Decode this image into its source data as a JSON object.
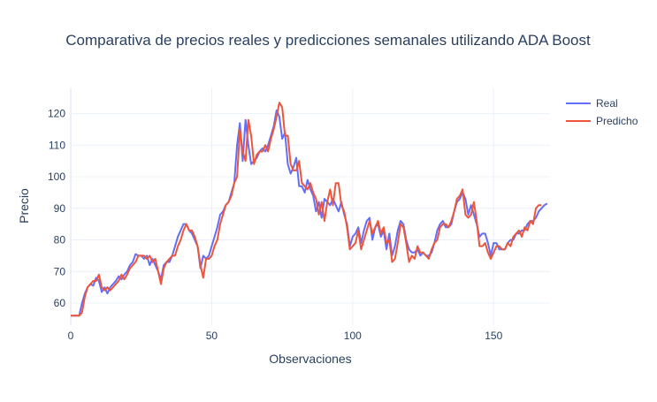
{
  "chart_data": {
    "type": "line",
    "title": "Comparativa de precios reales y predicciones semanales utilizando ADA Boost",
    "xlabel": "Observaciones",
    "ylabel": "Precio",
    "xlim": [
      0,
      170
    ],
    "ylim": [
      53,
      128
    ],
    "x_ticks": [
      0,
      50,
      100,
      150
    ],
    "y_ticks": [
      60,
      70,
      80,
      90,
      100,
      110,
      120
    ],
    "grid": true,
    "legend_position": "top-right",
    "series": [
      {
        "name": "Real",
        "color": "#636efa",
        "points": [
          [
            0,
            56
          ],
          [
            3,
            56
          ],
          [
            4,
            60
          ],
          [
            5,
            63
          ],
          [
            6,
            65
          ],
          [
            7,
            66
          ],
          [
            8,
            65.5
          ],
          [
            9,
            68
          ],
          [
            10,
            67
          ],
          [
            11,
            63.5
          ],
          [
            12,
            65
          ],
          [
            13,
            63
          ],
          [
            14,
            65
          ],
          [
            15,
            66
          ],
          [
            16,
            67
          ],
          [
            17,
            68.5
          ],
          [
            18,
            67.5
          ],
          [
            19,
            69
          ],
          [
            20,
            70
          ],
          [
            21,
            72
          ],
          [
            22,
            73
          ],
          [
            23,
            75.5
          ],
          [
            24,
            75
          ],
          [
            25,
            75
          ],
          [
            26,
            74
          ],
          [
            27,
            75
          ],
          [
            28,
            72
          ],
          [
            29,
            74
          ],
          [
            30,
            72
          ],
          [
            31,
            70
          ],
          [
            32,
            67.5
          ],
          [
            33,
            72
          ],
          [
            34,
            73
          ],
          [
            35,
            73
          ],
          [
            36,
            75
          ],
          [
            37,
            78
          ],
          [
            38,
            81
          ],
          [
            39,
            83
          ],
          [
            40,
            85
          ],
          [
            41,
            85
          ],
          [
            42,
            83
          ],
          [
            43,
            82
          ],
          [
            44,
            80
          ],
          [
            45,
            78
          ],
          [
            46,
            71
          ],
          [
            47,
            75
          ],
          [
            48,
            74
          ],
          [
            49,
            75
          ],
          [
            50,
            78
          ],
          [
            51,
            81
          ],
          [
            52,
            84
          ],
          [
            53,
            88
          ],
          [
            54,
            89
          ],
          [
            55,
            91
          ],
          [
            56,
            92
          ],
          [
            57,
            95
          ],
          [
            58,
            98
          ],
          [
            59,
            110
          ],
          [
            60,
            117
          ],
          [
            61,
            105
          ],
          [
            62,
            118
          ],
          [
            63,
            110
          ],
          [
            64,
            104
          ],
          [
            65,
            105
          ],
          [
            66,
            106
          ],
          [
            67,
            108
          ],
          [
            68,
            109
          ],
          [
            69,
            108
          ],
          [
            70,
            110
          ],
          [
            71,
            113
          ],
          [
            72,
            116
          ],
          [
            73,
            121
          ],
          [
            74,
            119
          ],
          [
            75,
            112
          ],
          [
            76,
            114
          ],
          [
            77,
            104
          ],
          [
            78,
            101
          ],
          [
            79,
            103
          ],
          [
            80,
            106
          ],
          [
            81,
            97
          ],
          [
            82,
            97
          ],
          [
            83,
            95
          ],
          [
            84,
            99
          ],
          [
            85,
            96
          ],
          [
            86,
            94
          ],
          [
            87,
            89
          ],
          [
            88,
            92
          ],
          [
            89,
            87
          ],
          [
            90,
            93
          ],
          [
            91,
            92
          ],
          [
            92,
            91
          ],
          [
            93,
            93
          ],
          [
            94,
            91
          ],
          [
            95,
            89
          ],
          [
            96,
            92
          ],
          [
            97,
            88
          ],
          [
            98,
            85
          ],
          [
            99,
            78
          ],
          [
            100,
            81
          ],
          [
            101,
            82
          ],
          [
            102,
            84
          ],
          [
            103,
            79
          ],
          [
            104,
            83
          ],
          [
            105,
            86
          ],
          [
            106,
            87
          ],
          [
            107,
            80
          ],
          [
            108,
            84
          ],
          [
            109,
            85
          ],
          [
            110,
            81
          ],
          [
            111,
            83
          ],
          [
            112,
            77
          ],
          [
            113,
            82
          ],
          [
            114,
            75
          ],
          [
            115,
            78
          ],
          [
            116,
            83
          ],
          [
            117,
            86
          ],
          [
            118,
            85
          ],
          [
            119,
            80
          ],
          [
            120,
            77
          ],
          [
            121,
            76
          ],
          [
            122,
            76
          ],
          [
            123,
            77
          ],
          [
            124,
            75
          ],
          [
            125,
            76
          ],
          [
            126,
            75
          ],
          [
            127,
            75
          ],
          [
            128,
            76
          ],
          [
            129,
            79
          ],
          [
            130,
            83
          ],
          [
            131,
            85
          ],
          [
            132,
            86
          ],
          [
            133,
            84
          ],
          [
            134,
            84
          ],
          [
            135,
            85
          ],
          [
            136,
            89
          ],
          [
            137,
            92
          ],
          [
            138,
            93
          ],
          [
            139,
            95
          ],
          [
            140,
            93
          ],
          [
            141,
            88
          ],
          [
            142,
            91
          ],
          [
            143,
            88
          ],
          [
            144,
            85
          ],
          [
            145,
            81
          ],
          [
            146,
            82
          ],
          [
            147,
            82
          ],
          [
            148,
            79
          ],
          [
            149,
            75
          ],
          [
            150,
            79
          ],
          [
            151,
            79
          ],
          [
            152,
            77
          ],
          [
            153,
            77
          ],
          [
            154,
            77
          ],
          [
            155,
            79
          ],
          [
            156,
            80
          ],
          [
            157,
            80
          ],
          [
            158,
            82
          ],
          [
            159,
            82
          ],
          [
            160,
            83
          ],
          [
            161,
            83
          ],
          [
            162,
            85
          ],
          [
            163,
            86
          ],
          [
            164,
            86
          ],
          [
            165,
            87
          ],
          [
            166,
            89
          ],
          [
            167,
            90
          ],
          [
            168,
            91
          ],
          [
            169,
            91.5
          ]
        ]
      },
      {
        "name": "Predicho",
        "color": "#ef553b",
        "points": [
          [
            0,
            56
          ],
          [
            3,
            56
          ],
          [
            4,
            57
          ],
          [
            5,
            62
          ],
          [
            6,
            65
          ],
          [
            7,
            66
          ],
          [
            8,
            67
          ],
          [
            9,
            67
          ],
          [
            10,
            69
          ],
          [
            11,
            65
          ],
          [
            12,
            64
          ],
          [
            13,
            65
          ],
          [
            14,
            64
          ],
          [
            15,
            65
          ],
          [
            16,
            66
          ],
          [
            17,
            67
          ],
          [
            18,
            69
          ],
          [
            19,
            67.5
          ],
          [
            20,
            69
          ],
          [
            21,
            71
          ],
          [
            22,
            72
          ],
          [
            23,
            73
          ],
          [
            24,
            75
          ],
          [
            25,
            75
          ],
          [
            26,
            75
          ],
          [
            27,
            74
          ],
          [
            28,
            75
          ],
          [
            29,
            73
          ],
          [
            30,
            74
          ],
          [
            31,
            70
          ],
          [
            32,
            66
          ],
          [
            33,
            71
          ],
          [
            34,
            73
          ],
          [
            35,
            74
          ],
          [
            36,
            75
          ],
          [
            37,
            75
          ],
          [
            38,
            78
          ],
          [
            39,
            80
          ],
          [
            40,
            83
          ],
          [
            41,
            85
          ],
          [
            42,
            83
          ],
          [
            43,
            83
          ],
          [
            44,
            81
          ],
          [
            45,
            78
          ],
          [
            46,
            72
          ],
          [
            47,
            68
          ],
          [
            48,
            74
          ],
          [
            49,
            74
          ],
          [
            50,
            75
          ],
          [
            51,
            78
          ],
          [
            52,
            80
          ],
          [
            53,
            85
          ],
          [
            54,
            88
          ],
          [
            55,
            91
          ],
          [
            56,
            92
          ],
          [
            57,
            94
          ],
          [
            58,
            98
          ],
          [
            59,
            100
          ],
          [
            60,
            115
          ],
          [
            61,
            108
          ],
          [
            62,
            105
          ],
          [
            63,
            118
          ],
          [
            64,
            113
          ],
          [
            65,
            104
          ],
          [
            66,
            107
          ],
          [
            67,
            108
          ],
          [
            68,
            108
          ],
          [
            69,
            110
          ],
          [
            70,
            108
          ],
          [
            71,
            112
          ],
          [
            72,
            115
          ],
          [
            73,
            119
          ],
          [
            74,
            123.5
          ],
          [
            75,
            122
          ],
          [
            76,
            113
          ],
          [
            77,
            113
          ],
          [
            78,
            104
          ],
          [
            79,
            102
          ],
          [
            80,
            102
          ],
          [
            81,
            105
          ],
          [
            82,
            98
          ],
          [
            83,
            97
          ],
          [
            84,
            96
          ],
          [
            85,
            98
          ],
          [
            86,
            95
          ],
          [
            87,
            93
          ],
          [
            88,
            88
          ],
          [
            89,
            92
          ],
          [
            90,
            86
          ],
          [
            91,
            92
          ],
          [
            92,
            96
          ],
          [
            93,
            91
          ],
          [
            94,
            98
          ],
          [
            95,
            98
          ],
          [
            96,
            91
          ],
          [
            97,
            89
          ],
          [
            98,
            84
          ],
          [
            99,
            77
          ],
          [
            100,
            78
          ],
          [
            101,
            79
          ],
          [
            102,
            83
          ],
          [
            103,
            77
          ],
          [
            104,
            80
          ],
          [
            105,
            83
          ],
          [
            106,
            86
          ],
          [
            107,
            82
          ],
          [
            108,
            84
          ],
          [
            109,
            86
          ],
          [
            110,
            82
          ],
          [
            111,
            84
          ],
          [
            112,
            79
          ],
          [
            113,
            80
          ],
          [
            114,
            73
          ],
          [
            115,
            74
          ],
          [
            116,
            79
          ],
          [
            117,
            85
          ],
          [
            118,
            84
          ],
          [
            119,
            79
          ],
          [
            120,
            73
          ],
          [
            121,
            75
          ],
          [
            122,
            74
          ],
          [
            123,
            78
          ],
          [
            124,
            76
          ],
          [
            125,
            76
          ],
          [
            126,
            75
          ],
          [
            127,
            74
          ],
          [
            128,
            77
          ],
          [
            129,
            79
          ],
          [
            130,
            80
          ],
          [
            131,
            84
          ],
          [
            132,
            85
          ],
          [
            133,
            85
          ],
          [
            134,
            84
          ],
          [
            135,
            86
          ],
          [
            136,
            89
          ],
          [
            137,
            93
          ],
          [
            138,
            94
          ],
          [
            139,
            96
          ],
          [
            140,
            88
          ],
          [
            141,
            87
          ],
          [
            142,
            88
          ],
          [
            143,
            92
          ],
          [
            144,
            86
          ],
          [
            145,
            78
          ],
          [
            146,
            78
          ],
          [
            147,
            79
          ],
          [
            148,
            76
          ],
          [
            149,
            74
          ],
          [
            150,
            76
          ],
          [
            151,
            78
          ],
          [
            152,
            78
          ],
          [
            153,
            77
          ],
          [
            154,
            77
          ],
          [
            155,
            79
          ],
          [
            156,
            78
          ],
          [
            157,
            81
          ],
          [
            158,
            82
          ],
          [
            159,
            83
          ],
          [
            160,
            81
          ],
          [
            161,
            84
          ],
          [
            162,
            83
          ],
          [
            163,
            86
          ],
          [
            164,
            85
          ],
          [
            165,
            90
          ],
          [
            166,
            91
          ],
          [
            167,
            91
          ]
        ]
      }
    ]
  }
}
